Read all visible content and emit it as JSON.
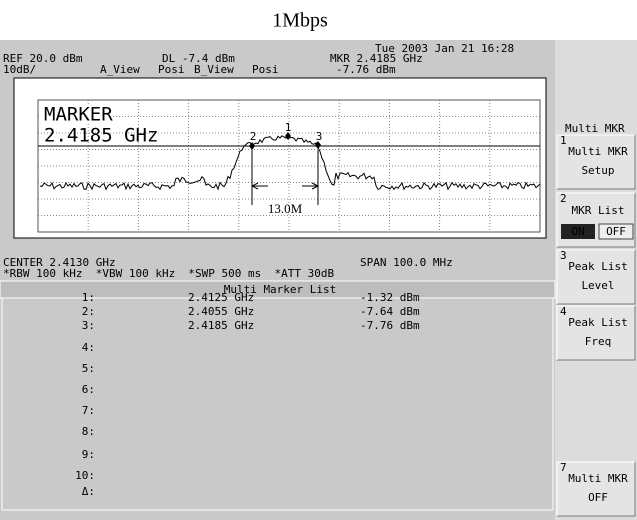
{
  "title": "1Mbps",
  "status": {
    "datetime": "Tue 2003 Jan 21 16:28",
    "ref": "REF 20.0 dBm",
    "dl": "DL -7.4 dBm",
    "mkr_freq": "MKR 2.4185 GHz",
    "scale": "10dB/",
    "a_view": "A_View",
    "posi_a": "Posi",
    "b_view": "B_View",
    "posi_b": "Posi",
    "mkr_level": "-7.76 dBm"
  },
  "plot": {
    "marker_label": "MARKER",
    "marker_freq": "2.4185 GHz",
    "bandwidth_label": "13.0M",
    "marker_ids": [
      "1",
      "2",
      "3"
    ]
  },
  "footer": {
    "center": "CENTER 2.4130 GHz",
    "span": "SPAN 100.0 MHz",
    "settings": "*RBW 100 kHz  *VBW 100 kHz  *SWP 500 ms  *ATT 30dB"
  },
  "table": {
    "title": "Multi Marker List",
    "rows": [
      [
        "1:",
        "2.4125 GHz",
        "-1.32 dBm"
      ],
      [
        "2:",
        "2.4055 GHz",
        "-7.64 dBm"
      ],
      [
        "3:",
        "2.4185 GHz",
        "-7.76 dBm"
      ],
      [
        "4:"
      ],
      [
        "5:"
      ],
      [
        "6:"
      ],
      [
        "7:"
      ],
      [
        "8:"
      ],
      [
        "9:"
      ],
      [
        "10:"
      ],
      [
        "Δ:"
      ]
    ]
  },
  "softkeys": {
    "menu_title": "Multi MKR",
    "keys": [
      {
        "number": "1",
        "lines": [
          "Multi MKR",
          "Setup"
        ]
      },
      {
        "number": "2",
        "lines": [
          "MKR List"
        ],
        "toggle": [
          "ON",
          "OFF"
        ]
      },
      {
        "number": "3",
        "lines": [
          "Peak List",
          "Level"
        ]
      },
      {
        "number": "4",
        "lines": [
          "Peak List",
          "Freq"
        ]
      },
      {
        "number": "7",
        "lines": [
          "Multi MKR",
          "OFF"
        ]
      }
    ]
  }
}
